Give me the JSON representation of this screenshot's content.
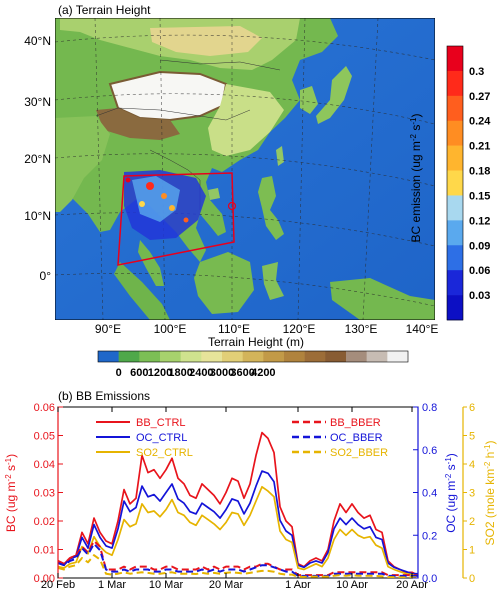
{
  "map": {
    "title": "(a) Terrain Height",
    "lat_labels": [
      "40°N",
      "30°N",
      "20°N",
      "10°N",
      "0°"
    ],
    "lon_labels": [
      "90°E",
      "100°E",
      "110°E",
      "120°E",
      "130°E",
      "140°E"
    ],
    "terrain_bar": {
      "title": "Terrain Height (m)",
      "labels": [
        "0",
        "600",
        "1200",
        "1800",
        "2400",
        "3000",
        "3600",
        "4200"
      ],
      "colors": [
        "#1f67c9",
        "#4fa84a",
        "#7cbf55",
        "#a7d26d",
        "#cfe38e",
        "#e7e49a",
        "#e2cf77",
        "#d3b45a",
        "#c29a47",
        "#b0833d",
        "#9c6d38",
        "#885c33",
        "#a58d7c",
        "#c7bcb3",
        "#f1f1f1"
      ]
    },
    "bc_bar": {
      "title": "BC emission (ug m",
      "title_sup": "-2",
      "title_mid": " s",
      "title_sup2": "-1",
      "title_end": ")",
      "labels": [
        "0.3",
        "0.27",
        "0.24",
        "0.21",
        "0.18",
        "0.15",
        "0.12",
        "0.09",
        "0.06",
        "0.03"
      ],
      "colors": [
        "#e8001c",
        "#ff2a1a",
        "#ff5e1e",
        "#ff8d22",
        "#ffb52e",
        "#ffd84a",
        "#a8d8ef",
        "#5aa9ee",
        "#2d6fe6",
        "#1a27d9",
        "#0c0fc4"
      ]
    }
  },
  "chart_data": {
    "type": "line",
    "title": "(b) BB Emissions",
    "x_tick_labels": [
      "20 Feb",
      "1 Mar",
      "10 Mar",
      "20 Mar",
      "1 Apr",
      "10 Apr",
      "20 Apr"
    ],
    "x_tick_days": [
      0,
      9,
      18,
      28,
      40,
      49,
      59
    ],
    "x_range": [
      0,
      60
    ],
    "y_left": {
      "label": "BC (ug m",
      "label_sup": "-2",
      "label_mid": " s",
      "label_sup2": "-1",
      "label_end": ")",
      "ylim": [
        0,
        0.06
      ],
      "ticks": [
        "0.00",
        "0.01",
        "0.02",
        "0.03",
        "0.04",
        "0.05",
        "0.06"
      ],
      "color": "#e8141c"
    },
    "y_right1": {
      "label": "OC (ug m",
      "label_sup": "-2",
      "label_mid": " s",
      "label_sup2": "-1",
      "label_end": ")",
      "ylim": [
        0,
        0.8
      ],
      "ticks": [
        "0.0",
        "0.2",
        "0.4",
        "0.6",
        "0.8"
      ],
      "color": "#1414d8"
    },
    "y_right2": {
      "label": "SO2 (mole km",
      "label_sup": "-2",
      "label_mid": " h",
      "label_sup2": "-1",
      "label_end": ")",
      "ylim": [
        0,
        6
      ],
      "ticks": [
        "0",
        "1",
        "2",
        "3",
        "4",
        "5",
        "6"
      ],
      "color": "#e6b400"
    },
    "series": [
      {
        "name": "BB_CTRL",
        "color": "#e8141c",
        "dash": false,
        "axis": "y_left",
        "values": [
          0.006,
          0.005,
          0.007,
          0.008,
          0.016,
          0.012,
          0.021,
          0.016,
          0.013,
          0.012,
          0.02,
          0.031,
          0.026,
          0.028,
          0.043,
          0.037,
          0.038,
          0.035,
          0.038,
          0.042,
          0.035,
          0.033,
          0.029,
          0.028,
          0.033,
          0.031,
          0.029,
          0.026,
          0.03,
          0.035,
          0.034,
          0.028,
          0.033,
          0.043,
          0.051,
          0.049,
          0.044,
          0.025,
          0.02,
          0.018,
          0.005,
          0.004,
          0.006,
          0.007,
          0.006,
          0.01,
          0.02,
          0.026,
          0.023,
          0.026,
          0.023,
          0.021,
          0.022,
          0.017,
          0.016,
          0.006,
          0.004,
          0.003,
          0.002,
          0.002,
          0.001
        ]
      },
      {
        "name": "OC_CTRL",
        "color": "#1414d8",
        "dash": false,
        "axis": "y_right1",
        "values": [
          0.07,
          0.06,
          0.09,
          0.1,
          0.19,
          0.14,
          0.25,
          0.19,
          0.15,
          0.14,
          0.23,
          0.36,
          0.31,
          0.33,
          0.43,
          0.38,
          0.39,
          0.36,
          0.4,
          0.44,
          0.37,
          0.35,
          0.31,
          0.3,
          0.35,
          0.33,
          0.31,
          0.28,
          0.32,
          0.37,
          0.36,
          0.3,
          0.35,
          0.43,
          0.5,
          0.49,
          0.45,
          0.27,
          0.22,
          0.2,
          0.06,
          0.05,
          0.07,
          0.08,
          0.07,
          0.12,
          0.23,
          0.28,
          0.25,
          0.28,
          0.25,
          0.23,
          0.24,
          0.19,
          0.18,
          0.07,
          0.05,
          0.04,
          0.03,
          0.02,
          0.02
        ]
      },
      {
        "name": "SO2_CTRL",
        "color": "#e6b400",
        "dash": false,
        "axis": "y_right2",
        "values": [
          0.4,
          0.35,
          0.5,
          0.55,
          1.1,
          0.85,
          1.45,
          1.1,
          0.9,
          0.8,
          1.35,
          2.05,
          1.8,
          1.9,
          2.6,
          2.3,
          2.35,
          2.15,
          2.4,
          2.75,
          2.3,
          2.2,
          1.95,
          1.85,
          2.2,
          2.05,
          1.9,
          1.7,
          1.95,
          2.3,
          2.25,
          1.85,
          2.2,
          2.7,
          3.2,
          3.05,
          2.85,
          1.65,
          1.35,
          1.25,
          0.35,
          0.3,
          0.4,
          0.5,
          0.4,
          0.7,
          1.35,
          1.7,
          1.5,
          1.7,
          1.5,
          1.4,
          1.45,
          1.15,
          1.05,
          0.4,
          0.3,
          0.22,
          0.15,
          0.12,
          0.08
        ]
      },
      {
        "name": "BB_BBER",
        "color": "#e8141c",
        "dash": true,
        "axis": "y_left",
        "values": [
          0.006,
          0.005,
          0.007,
          0.008,
          0.011,
          0.009,
          0.013,
          0.011,
          0.003,
          0.003,
          0.003,
          0.004,
          0.003,
          0.004,
          0.004,
          0.004,
          0.003,
          0.003,
          0.004,
          0.004,
          0.003,
          0.003,
          0.003,
          0.003,
          0.004,
          0.003,
          0.004,
          0.003,
          0.004,
          0.004,
          0.004,
          0.003,
          0.004,
          0.004,
          0.005,
          0.005,
          0.004,
          0.003,
          0.003,
          0.003,
          0.001,
          0.001,
          0.001,
          0.001,
          0.001,
          0.001,
          0.002,
          0.002,
          0.002,
          0.002,
          0.002,
          0.002,
          0.002,
          0.002,
          0.002,
          0.001,
          0.001,
          0.001,
          0.001,
          0.001,
          0.001
        ]
      },
      {
        "name": "OC_BBER",
        "color": "#1414d8",
        "dash": true,
        "axis": "y_right1",
        "values": [
          0.07,
          0.06,
          0.08,
          0.09,
          0.14,
          0.11,
          0.16,
          0.13,
          0.04,
          0.03,
          0.03,
          0.04,
          0.03,
          0.04,
          0.04,
          0.04,
          0.03,
          0.03,
          0.04,
          0.04,
          0.03,
          0.03,
          0.03,
          0.03,
          0.04,
          0.03,
          0.04,
          0.03,
          0.04,
          0.04,
          0.04,
          0.03,
          0.04,
          0.05,
          0.06,
          0.06,
          0.05,
          0.04,
          0.03,
          0.03,
          0.01,
          0.01,
          0.01,
          0.01,
          0.01,
          0.01,
          0.02,
          0.02,
          0.02,
          0.02,
          0.02,
          0.02,
          0.02,
          0.02,
          0.02,
          0.01,
          0.01,
          0.01,
          0.01,
          0.01,
          0.01
        ]
      },
      {
        "name": "SO2_BBER",
        "color": "#e6b400",
        "dash": true,
        "axis": "y_right2",
        "values": [
          0.35,
          0.3,
          0.4,
          0.45,
          0.7,
          0.55,
          0.8,
          0.65,
          0.15,
          0.12,
          0.15,
          0.2,
          0.15,
          0.18,
          0.2,
          0.18,
          0.15,
          0.15,
          0.18,
          0.2,
          0.15,
          0.15,
          0.15,
          0.14,
          0.18,
          0.15,
          0.18,
          0.15,
          0.18,
          0.2,
          0.18,
          0.15,
          0.18,
          0.22,
          0.25,
          0.25,
          0.22,
          0.15,
          0.12,
          0.12,
          0.04,
          0.04,
          0.05,
          0.05,
          0.05,
          0.05,
          0.08,
          0.1,
          0.08,
          0.1,
          0.08,
          0.08,
          0.08,
          0.07,
          0.06,
          0.03,
          0.03,
          0.02,
          0.02,
          0.02,
          0.02
        ]
      }
    ],
    "grid": false,
    "legend_placement": "top, two columns"
  }
}
